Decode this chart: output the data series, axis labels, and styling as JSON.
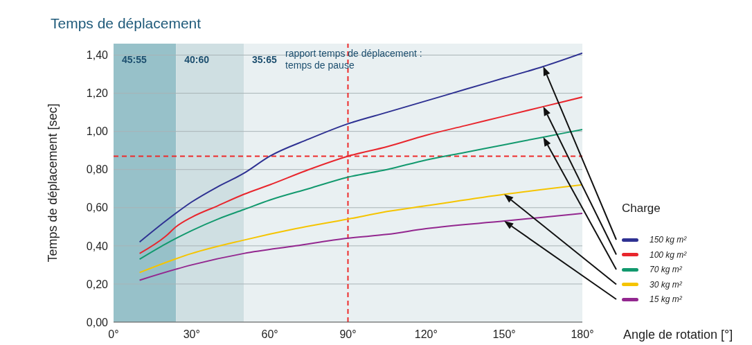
{
  "chart_data": {
    "type": "line",
    "title": "Temps de déplacement",
    "xlabel": "Angle de rotation [°]",
    "ylabel": "Temps de déplacement [sec]",
    "legend_title": "Charge",
    "legend": "right",
    "grid": "y",
    "marker": "none",
    "line_style": "solid",
    "xlim": [
      0,
      180
    ],
    "xticks": [
      {
        "value": 0,
        "label": "0°"
      },
      {
        "value": 30,
        "label": "30°"
      },
      {
        "value": 60,
        "label": "60°"
      },
      {
        "value": 90,
        "label": "90°"
      },
      {
        "value": 120,
        "label": "120°"
      },
      {
        "value": 150,
        "label": "150°"
      },
      {
        "value": 180,
        "label": "180°"
      }
    ],
    "ylim": [
      0,
      1.46
    ],
    "yticks": [
      {
        "value": 0,
        "label": "0,00"
      },
      {
        "value": 0.2,
        "label": "0,20"
      },
      {
        "value": 0.4,
        "label": "0,40"
      },
      {
        "value": 0.6,
        "label": "0,60"
      },
      {
        "value": 0.8,
        "label": "0,80"
      },
      {
        "value": 1.0,
        "label": "1,00"
      },
      {
        "value": 1.2,
        "label": "1,20"
      },
      {
        "value": 1.4,
        "label": "1,40"
      }
    ],
    "series": [
      {
        "name": "150 kg m²",
        "color": "#2e3192",
        "x": [
          10,
          20,
          30,
          40,
          50,
          60,
          75,
          90,
          105,
          120,
          135,
          150,
          165,
          180
        ],
        "values": [
          0.42,
          0.53,
          0.63,
          0.71,
          0.78,
          0.87,
          0.96,
          1.04,
          1.1,
          1.16,
          1.22,
          1.28,
          1.34,
          1.41
        ]
      },
      {
        "name": "100 kg m²",
        "color": "#e8262d",
        "x": [
          10,
          20,
          24,
          30,
          40,
          50,
          60,
          75,
          90,
          105,
          120,
          135,
          150,
          165,
          180
        ],
        "values": [
          0.36,
          0.45,
          0.5,
          0.55,
          0.61,
          0.67,
          0.72,
          0.8,
          0.87,
          0.92,
          0.98,
          1.03,
          1.08,
          1.13,
          1.18
        ]
      },
      {
        "name": "70 kg m²",
        "color": "#12996e",
        "x": [
          10,
          20,
          30,
          40,
          50,
          60,
          75,
          90,
          105,
          120,
          135,
          150,
          165,
          180
        ],
        "values": [
          0.33,
          0.41,
          0.48,
          0.54,
          0.59,
          0.64,
          0.7,
          0.76,
          0.8,
          0.85,
          0.89,
          0.93,
          0.97,
          1.01
        ]
      },
      {
        "name": "30 kg m²",
        "color": "#f5c400",
        "x": [
          10,
          30,
          50,
          70,
          90,
          105,
          120,
          150,
          180
        ],
        "values": [
          0.26,
          0.36,
          0.43,
          0.49,
          0.54,
          0.58,
          0.61,
          0.67,
          0.72
        ]
      },
      {
        "name": "15 kg m²",
        "color": "#93278f",
        "x": [
          10,
          30,
          50,
          70,
          90,
          105,
          120,
          150,
          180
        ],
        "values": [
          0.22,
          0.3,
          0.36,
          0.4,
          0.44,
          0.46,
          0.49,
          0.53,
          0.57
        ]
      }
    ],
    "bands": [
      {
        "axis": "x",
        "from": 0,
        "to": 24,
        "label": "45:55",
        "color": "#97c1c9"
      },
      {
        "axis": "x",
        "from": 24,
        "to": 50,
        "label": "40:60",
        "color": "#cfdfe2"
      },
      {
        "axis": "x",
        "from": 50,
        "to": 180,
        "label": "35:65",
        "color": "#e9f0f2"
      }
    ],
    "ref_lines": [
      {
        "axis": "y",
        "value": 0.87,
        "color": "#ee2a2a",
        "line_style": "dashed"
      },
      {
        "axis": "x",
        "value": 90,
        "color": "#ee2a2a",
        "line_style": "dashed"
      }
    ],
    "annotations": [
      "rapport temps de déplacement : temps de pause"
    ]
  }
}
